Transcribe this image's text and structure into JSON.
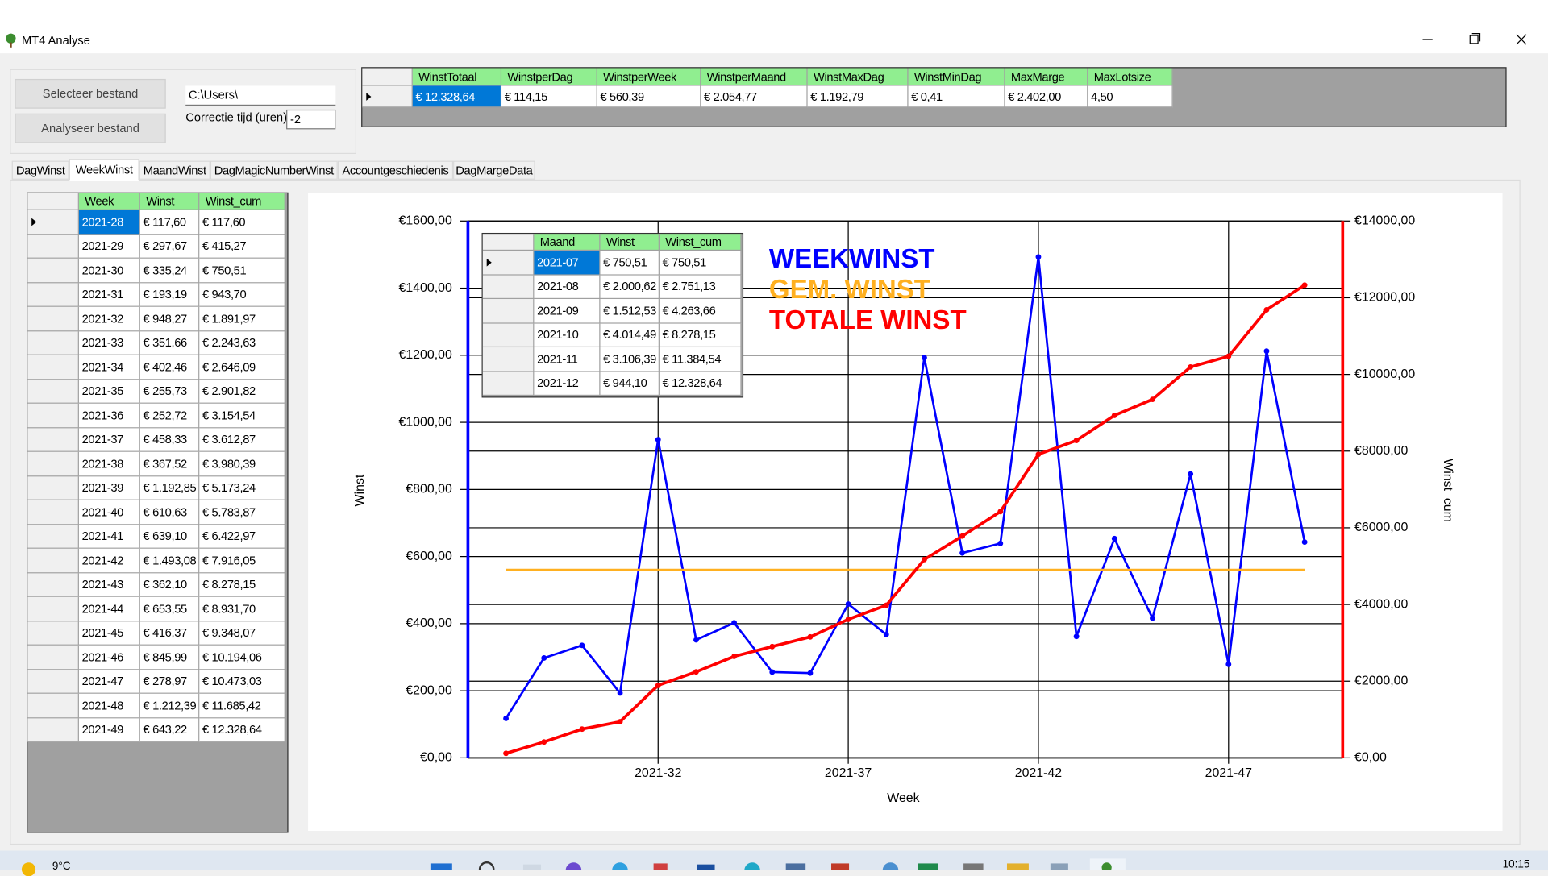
{
  "window": {
    "title": "MT4 Analyse"
  },
  "controls": {
    "select_button": "Selecteer bestand",
    "analyse_button": "Analyseer bestand",
    "path": "C:\\Users\\",
    "correction_label": "Correctie tijd (uren)",
    "correction": "-2"
  },
  "summary": {
    "headers": [
      "WinstTotaal",
      "WinstperDag",
      "WinstperWeek",
      "WinstperMaand",
      "WinstMaxDag",
      "WinstMinDag",
      "MaxMarge",
      "MaxLotsize"
    ],
    "rows": [
      [
        "€ 12.328,64",
        "€ 114,15",
        "€ 560,39",
        "€ 2.054,77",
        "€ 1.192,79",
        "€ 0,41",
        "€ 2.402,00",
        "4,50"
      ]
    ]
  },
  "tabs": {
    "labels": [
      "DagWinst",
      "WeekWinst",
      "MaandWinst",
      "DagMagicNumberWinst",
      "Accountgeschiedenis",
      "DagMargeData"
    ],
    "active": 1
  },
  "week_table": {
    "headers": [
      "Week",
      "Winst",
      "Winst_cum"
    ],
    "rows": [
      [
        "2021-28",
        "€ 117,60",
        "€ 117,60"
      ],
      [
        "2021-29",
        "€ 297,67",
        "€ 415,27"
      ],
      [
        "2021-30",
        "€ 335,24",
        "€ 750,51"
      ],
      [
        "2021-31",
        "€ 193,19",
        "€ 943,70"
      ],
      [
        "2021-32",
        "€ 948,27",
        "€ 1.891,97"
      ],
      [
        "2021-33",
        "€ 351,66",
        "€ 2.243,63"
      ],
      [
        "2021-34",
        "€ 402,46",
        "€ 2.646,09"
      ],
      [
        "2021-35",
        "€ 255,73",
        "€ 2.901,82"
      ],
      [
        "2021-36",
        "€ 252,72",
        "€ 3.154,54"
      ],
      [
        "2021-37",
        "€ 458,33",
        "€ 3.612,87"
      ],
      [
        "2021-38",
        "€ 367,52",
        "€ 3.980,39"
      ],
      [
        "2021-39",
        "€ 1.192,85",
        "€ 5.173,24"
      ],
      [
        "2021-40",
        "€ 610,63",
        "€ 5.783,87"
      ],
      [
        "2021-41",
        "€ 639,10",
        "€ 6.422,97"
      ],
      [
        "2021-42",
        "€ 1.493,08",
        "€ 7.916,05"
      ],
      [
        "2021-43",
        "€ 362,10",
        "€ 8.278,15"
      ],
      [
        "2021-44",
        "€ 653,55",
        "€ 8.931,70"
      ],
      [
        "2021-45",
        "€ 416,37",
        "€ 9.348,07"
      ],
      [
        "2021-46",
        "€ 845,99",
        "€ 10.194,06"
      ],
      [
        "2021-47",
        "€ 278,97",
        "€ 10.473,03"
      ],
      [
        "2021-48",
        "€ 1.212,39",
        "€ 11.685,42"
      ],
      [
        "2021-49",
        "€ 643,22",
        "€ 12.328,64"
      ]
    ]
  },
  "month_table": {
    "headers": [
      "Maand",
      "Winst",
      "Winst_cum"
    ],
    "rows": [
      [
        "2021-07",
        "€ 750,51",
        "€ 750,51"
      ],
      [
        "2021-08",
        "€ 2.000,62",
        "€ 2.751,13"
      ],
      [
        "2021-09",
        "€ 1.512,53",
        "€ 4.263,66"
      ],
      [
        "2021-10",
        "€ 4.014,49",
        "€ 8.278,15"
      ],
      [
        "2021-11",
        "€ 3.106,39",
        "€ 11.384,54"
      ],
      [
        "2021-12",
        "€ 944,10",
        "€ 12.328,64"
      ]
    ]
  },
  "chart_data": {
    "type": "line",
    "x_label": "Week",
    "y_label": "Winst",
    "y2_label": "Winst_cum",
    "categories": [
      null,
      null,
      null,
      null,
      "2021-32",
      null,
      null,
      null,
      null,
      "2021-37",
      null,
      null,
      null,
      null,
      "2021-42",
      null,
      null,
      null,
      null,
      "2021-47",
      null,
      null
    ],
    "series": [
      {
        "name": "WEEKWINST",
        "color": "#0000ff",
        "markers": true,
        "values": [
          117.6,
          297.67,
          335.24,
          193.19,
          948.27,
          351.66,
          402.46,
          255.73,
          252.72,
          458.33,
          367.52,
          1192.85,
          610.63,
          639.1,
          1493.08,
          362.1,
          653.55,
          416.37,
          845.99,
          278.97,
          1212.39,
          643.22
        ]
      },
      {
        "name": "GEM. WINST",
        "color": "#ffb020",
        "markers": false,
        "values": [
          560.39,
          560.39,
          560.39,
          560.39,
          560.39,
          560.39,
          560.39,
          560.39,
          560.39,
          560.39,
          560.39,
          560.39,
          560.39,
          560.39,
          560.39,
          560.39,
          560.39,
          560.39,
          560.39,
          560.39,
          560.39,
          560.39
        ]
      },
      {
        "name": "TOTALE WINST",
        "color": "#ff0000",
        "markers": true,
        "axis": "y2",
        "values": [
          117.6,
          415.27,
          750.51,
          943.7,
          1891.97,
          2243.63,
          2646.09,
          2901.82,
          3154.54,
          3612.87,
          3980.39,
          5173.24,
          5783.87,
          6422.97,
          7916.05,
          8278.15,
          8931.7,
          9348.07,
          10194.06,
          10473.03,
          11685.42,
          12328.64
        ]
      }
    ],
    "ylim": [
      0,
      1600
    ],
    "yticks": [
      {
        "value": 0,
        "label": "€0,00"
      },
      {
        "value": 200,
        "label": "€200,00"
      },
      {
        "value": 400,
        "label": "€400,00"
      },
      {
        "value": 600,
        "label": "€600,00"
      },
      {
        "value": 800,
        "label": "€800,00"
      },
      {
        "value": 1000,
        "label": "€1000,00"
      },
      {
        "value": 1200,
        "label": "€1200,00"
      },
      {
        "value": 1400,
        "label": "€1400,00"
      },
      {
        "value": 1600,
        "label": "€1600,00"
      }
    ],
    "y2lim": [
      0,
      14000
    ],
    "y2ticks": [
      {
        "value": 0,
        "label": "€0,00"
      },
      {
        "value": 2000,
        "label": "€2000,00"
      },
      {
        "value": 4000,
        "label": "€4000,00"
      },
      {
        "value": 6000,
        "label": "€6000,00"
      },
      {
        "value": 8000,
        "label": "€8000,00"
      },
      {
        "value": 10000,
        "label": "€10000,00"
      },
      {
        "value": 12000,
        "label": "€12000,00"
      },
      {
        "value": 14000,
        "label": "€14000,00"
      }
    ],
    "grid": true
  },
  "taskbar": {
    "weather": "9°C",
    "time": "10:15"
  }
}
